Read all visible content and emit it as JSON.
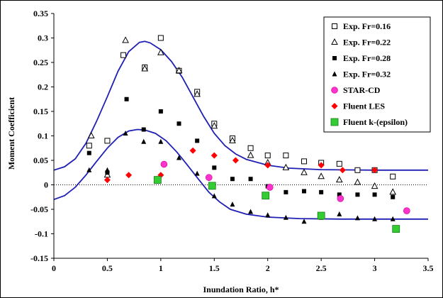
{
  "chart_data": {
    "type": "scatter",
    "xlabel": "Inundation Ratio, h*",
    "ylabel": "Moment Coefficient",
    "xlim": [
      0,
      3.5
    ],
    "ylim": [
      -0.15,
      0.35
    ],
    "x_ticks": [
      "0",
      "0.5",
      "1",
      "1.5",
      "2",
      "2.5",
      "3",
      "3.5"
    ],
    "y_ticks": [
      "-0.15",
      "-0.1",
      "-0.05",
      "0",
      "0.05",
      "0.1",
      "0.15",
      "0.2",
      "0.25",
      "0.3",
      "0.35"
    ],
    "grid": false,
    "zero_line": true,
    "legend_position": "top-right",
    "series": [
      {
        "name": "Exp. Fr=0.16",
        "marker": "open-square",
        "color": "#000000",
        "points": [
          [
            0.33,
            0.08
          ],
          [
            0.5,
            0.09
          ],
          [
            0.65,
            0.265
          ],
          [
            0.85,
            0.24
          ],
          [
            1.0,
            0.3
          ],
          [
            1.17,
            0.233
          ],
          [
            1.34,
            0.19
          ],
          [
            1.5,
            0.125
          ],
          [
            1.67,
            0.095
          ],
          [
            1.84,
            0.075
          ],
          [
            2.0,
            0.06
          ],
          [
            2.17,
            0.06
          ],
          [
            2.34,
            0.048
          ],
          [
            2.5,
            0.045
          ],
          [
            2.67,
            0.043
          ],
          [
            2.84,
            0.03
          ],
          [
            3.0,
            0.03
          ],
          [
            3.17,
            0.017
          ]
        ]
      },
      {
        "name": "Exp. Fr=0.22",
        "marker": "open-triangle",
        "color": "#000000",
        "points": [
          [
            0.35,
            0.1
          ],
          [
            0.5,
            0.02
          ],
          [
            0.67,
            0.295
          ],
          [
            0.85,
            0.237
          ],
          [
            1.0,
            0.27
          ],
          [
            1.17,
            0.233
          ],
          [
            1.34,
            0.185
          ],
          [
            1.5,
            0.12
          ],
          [
            1.67,
            0.09
          ],
          [
            1.84,
            0.06
          ],
          [
            2.0,
            0.045
          ],
          [
            2.17,
            0.035
          ],
          [
            2.34,
            0.025
          ],
          [
            2.5,
            0.017
          ],
          [
            2.67,
            0.01
          ],
          [
            2.84,
            0.005
          ],
          [
            3.0,
            -0.003
          ],
          [
            3.17,
            -0.015
          ]
        ]
      },
      {
        "name": "Exp. Fr=0.28",
        "marker": "filled-square",
        "color": "#000000",
        "points": [
          [
            0.33,
            0.065
          ],
          [
            0.5,
            0.025
          ],
          [
            0.68,
            0.175
          ],
          [
            0.84,
            0.113
          ],
          [
            1.0,
            0.15
          ],
          [
            1.17,
            0.125
          ],
          [
            1.34,
            0.09
          ],
          [
            1.5,
            0.035
          ],
          [
            1.67,
            0.012
          ],
          [
            1.84,
            0.012
          ],
          [
            2.0,
            -0.003
          ],
          [
            2.17,
            -0.015
          ],
          [
            2.34,
            -0.013
          ],
          [
            2.5,
            -0.015
          ],
          [
            2.67,
            -0.02
          ],
          [
            2.84,
            -0.02
          ],
          [
            3.0,
            -0.02
          ],
          [
            3.17,
            -0.025
          ]
        ]
      },
      {
        "name": "Exp. Fr=0.32",
        "marker": "filled-triangle",
        "color": "#000000",
        "points": [
          [
            0.33,
            0.03
          ],
          [
            0.5,
            0.03
          ],
          [
            0.67,
            0.105
          ],
          [
            0.84,
            0.088
          ],
          [
            1.0,
            0.088
          ],
          [
            1.17,
            0.055
          ],
          [
            1.34,
            0.023
          ],
          [
            1.5,
            -0.023
          ],
          [
            1.67,
            -0.04
          ],
          [
            1.84,
            -0.055
          ],
          [
            2.0,
            -0.062
          ],
          [
            2.17,
            -0.067
          ],
          [
            2.34,
            -0.075
          ],
          [
            2.5,
            -0.067
          ],
          [
            2.67,
            -0.06
          ],
          [
            2.84,
            -0.068
          ],
          [
            3.0,
            -0.07
          ],
          [
            3.17,
            -0.07
          ]
        ]
      },
      {
        "name": "STAR-CD",
        "marker": "circle",
        "color": "#ff33cc",
        "points": [
          [
            1.03,
            0.042
          ],
          [
            1.45,
            0.015
          ],
          [
            2.02,
            -0.005
          ],
          [
            2.68,
            -0.028
          ],
          [
            3.3,
            -0.053
          ]
        ]
      },
      {
        "name": "Fluent  LES",
        "marker": "diamond",
        "color": "#ff0000",
        "points": [
          [
            0.5,
            0.01
          ],
          [
            0.7,
            0.02
          ],
          [
            1.0,
            0.02
          ],
          [
            1.3,
            0.07
          ],
          [
            1.5,
            0.06
          ],
          [
            1.7,
            0.05
          ],
          [
            2.0,
            0.04
          ],
          [
            2.5,
            0.04
          ],
          [
            2.7,
            0.03
          ],
          [
            3.0,
            0.03
          ]
        ]
      },
      {
        "name": "Fluent  k-(epsilon)",
        "marker": "big-square",
        "color": "#33cc33",
        "points": [
          [
            0.97,
            0.01
          ],
          [
            1.48,
            -0.002
          ],
          [
            1.98,
            -0.022
          ],
          [
            2.5,
            -0.063
          ],
          [
            3.2,
            -0.09
          ]
        ]
      }
    ],
    "curves": [
      {
        "color": "#1f1fb4",
        "points": [
          [
            0.0,
            0.03
          ],
          [
            0.1,
            0.037
          ],
          [
            0.2,
            0.053
          ],
          [
            0.3,
            0.085
          ],
          [
            0.4,
            0.13
          ],
          [
            0.5,
            0.18
          ],
          [
            0.6,
            0.232
          ],
          [
            0.7,
            0.272
          ],
          [
            0.8,
            0.291
          ],
          [
            0.85,
            0.293
          ],
          [
            0.9,
            0.29
          ],
          [
            1.0,
            0.276
          ],
          [
            1.1,
            0.252
          ],
          [
            1.2,
            0.22
          ],
          [
            1.3,
            0.18
          ],
          [
            1.4,
            0.14
          ],
          [
            1.5,
            0.105
          ],
          [
            1.6,
            0.08
          ],
          [
            1.7,
            0.063
          ],
          [
            1.8,
            0.052
          ],
          [
            2.0,
            0.04
          ],
          [
            2.2,
            0.034
          ],
          [
            2.5,
            0.031
          ],
          [
            3.0,
            0.03
          ],
          [
            3.5,
            0.03
          ]
        ]
      },
      {
        "color": "#1f1fb4",
        "points": [
          [
            0.0,
            -0.03
          ],
          [
            0.1,
            -0.022
          ],
          [
            0.2,
            -0.005
          ],
          [
            0.3,
            0.02
          ],
          [
            0.4,
            0.048
          ],
          [
            0.5,
            0.075
          ],
          [
            0.6,
            0.097
          ],
          [
            0.7,
            0.11
          ],
          [
            0.78,
            0.113
          ],
          [
            0.85,
            0.112
          ],
          [
            0.95,
            0.105
          ],
          [
            1.05,
            0.09
          ],
          [
            1.15,
            0.067
          ],
          [
            1.25,
            0.04
          ],
          [
            1.35,
            0.012
          ],
          [
            1.45,
            -0.015
          ],
          [
            1.55,
            -0.035
          ],
          [
            1.65,
            -0.05
          ],
          [
            1.8,
            -0.06
          ],
          [
            2.0,
            -0.066
          ],
          [
            2.3,
            -0.069
          ],
          [
            2.7,
            -0.07
          ],
          [
            3.0,
            -0.07
          ],
          [
            3.5,
            -0.07
          ]
        ]
      }
    ]
  }
}
